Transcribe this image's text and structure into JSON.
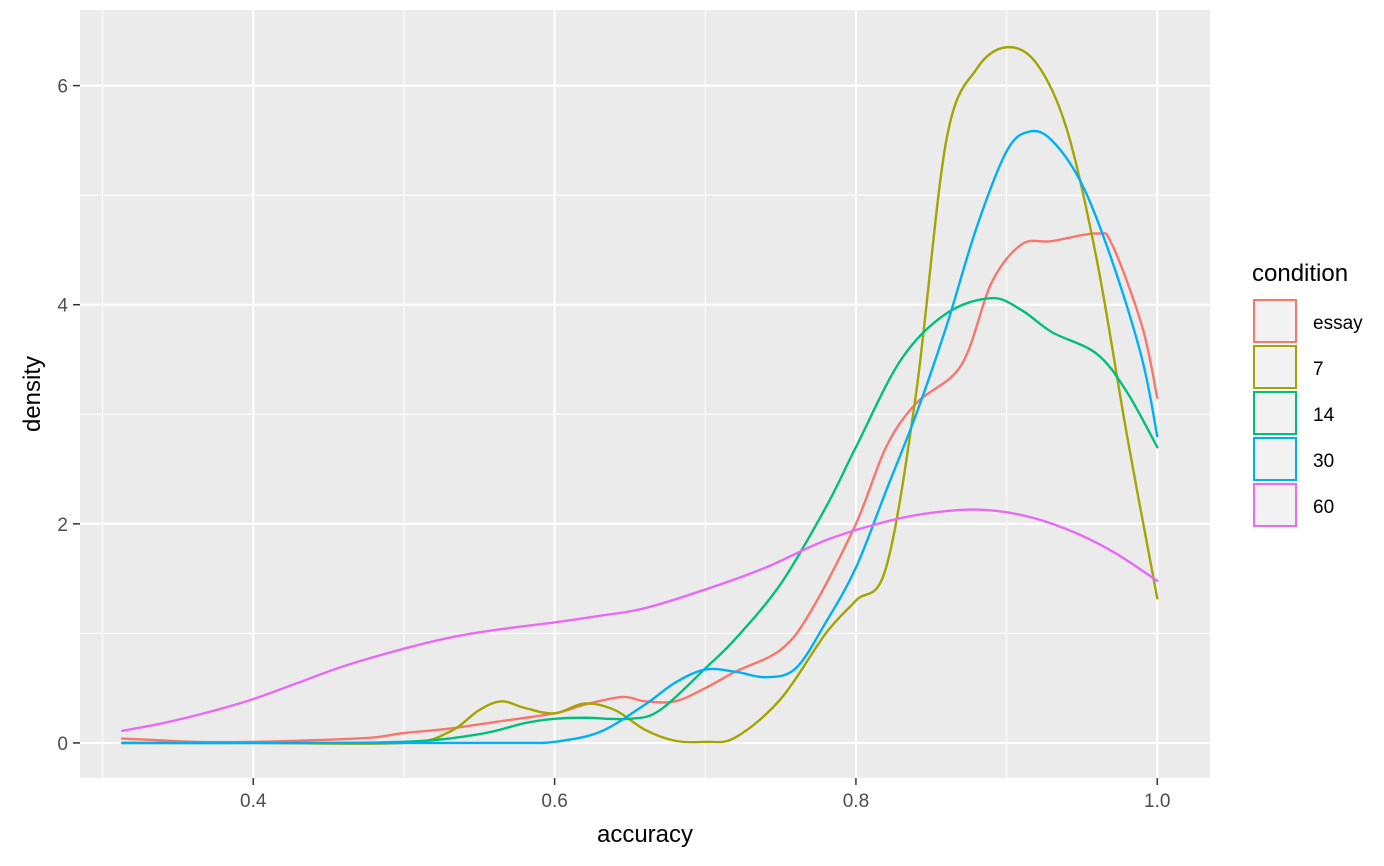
{
  "chart_data": {
    "type": "line",
    "title": "",
    "xlabel": "accuracy",
    "ylabel": "density",
    "xlim": [
      0.285,
      1.035
    ],
    "ylim": [
      -0.32,
      6.69
    ],
    "x_ticks": [
      0.4,
      0.6,
      0.8,
      1.0
    ],
    "x_tick_labels": [
      "0.4",
      "0.6",
      "0.8",
      "1.0"
    ],
    "y_ticks": [
      0,
      2,
      4,
      6
    ],
    "y_tick_labels": [
      "0",
      "2",
      "4",
      "6"
    ],
    "grid": true,
    "legend": {
      "title": "condition",
      "position": "right"
    },
    "series": [
      {
        "name": "essay",
        "color": "#F8766D",
        "points": [
          [
            0.313,
            0.04
          ],
          [
            0.33,
            0.03
          ],
          [
            0.36,
            0.01
          ],
          [
            0.4,
            0.01
          ],
          [
            0.45,
            0.03
          ],
          [
            0.48,
            0.05
          ],
          [
            0.5,
            0.09
          ],
          [
            0.53,
            0.13
          ],
          [
            0.56,
            0.19
          ],
          [
            0.6,
            0.27
          ],
          [
            0.62,
            0.35
          ],
          [
            0.645,
            0.42
          ],
          [
            0.66,
            0.38
          ],
          [
            0.68,
            0.38
          ],
          [
            0.7,
            0.5
          ],
          [
            0.72,
            0.65
          ],
          [
            0.75,
            0.85
          ],
          [
            0.77,
            1.2
          ],
          [
            0.8,
            2.0
          ],
          [
            0.82,
            2.7
          ],
          [
            0.84,
            3.1
          ],
          [
            0.87,
            3.45
          ],
          [
            0.89,
            4.2
          ],
          [
            0.91,
            4.55
          ],
          [
            0.93,
            4.58
          ],
          [
            0.96,
            4.65
          ],
          [
            0.97,
            4.55
          ],
          [
            0.99,
            3.8
          ],
          [
            1.0,
            3.15
          ]
        ]
      },
      {
        "name": "7",
        "color": "#A3A500",
        "points": [
          [
            0.313,
            0.0
          ],
          [
            0.4,
            0.0
          ],
          [
            0.5,
            0.0
          ],
          [
            0.53,
            0.1
          ],
          [
            0.55,
            0.3
          ],
          [
            0.565,
            0.38
          ],
          [
            0.58,
            0.32
          ],
          [
            0.6,
            0.27
          ],
          [
            0.62,
            0.36
          ],
          [
            0.64,
            0.3
          ],
          [
            0.66,
            0.12
          ],
          [
            0.68,
            0.02
          ],
          [
            0.7,
            0.01
          ],
          [
            0.72,
            0.05
          ],
          [
            0.75,
            0.4
          ],
          [
            0.78,
            1.0
          ],
          [
            0.8,
            1.3
          ],
          [
            0.82,
            1.6
          ],
          [
            0.84,
            3.2
          ],
          [
            0.86,
            5.5
          ],
          [
            0.88,
            6.15
          ],
          [
            0.9,
            6.35
          ],
          [
            0.92,
            6.2
          ],
          [
            0.94,
            5.6
          ],
          [
            0.96,
            4.4
          ],
          [
            0.98,
            2.8
          ],
          [
            1.0,
            1.32
          ]
        ]
      },
      {
        "name": "14",
        "color": "#00BF7D",
        "points": [
          [
            0.313,
            0.0
          ],
          [
            0.4,
            0.0
          ],
          [
            0.5,
            0.01
          ],
          [
            0.55,
            0.08
          ],
          [
            0.58,
            0.18
          ],
          [
            0.6,
            0.22
          ],
          [
            0.62,
            0.23
          ],
          [
            0.65,
            0.22
          ],
          [
            0.67,
            0.3
          ],
          [
            0.7,
            0.68
          ],
          [
            0.72,
            0.95
          ],
          [
            0.75,
            1.45
          ],
          [
            0.78,
            2.15
          ],
          [
            0.8,
            2.7
          ],
          [
            0.83,
            3.5
          ],
          [
            0.86,
            3.92
          ],
          [
            0.89,
            4.06
          ],
          [
            0.91,
            3.95
          ],
          [
            0.93,
            3.75
          ],
          [
            0.96,
            3.55
          ],
          [
            0.98,
            3.2
          ],
          [
            1.0,
            2.7
          ]
        ]
      },
      {
        "name": "30",
        "color": "#00B0F6",
        "points": [
          [
            0.313,
            0.0
          ],
          [
            0.5,
            0.0
          ],
          [
            0.58,
            0.0
          ],
          [
            0.6,
            0.01
          ],
          [
            0.63,
            0.1
          ],
          [
            0.66,
            0.35
          ],
          [
            0.68,
            0.55
          ],
          [
            0.7,
            0.67
          ],
          [
            0.72,
            0.65
          ],
          [
            0.74,
            0.6
          ],
          [
            0.76,
            0.68
          ],
          [
            0.78,
            1.1
          ],
          [
            0.8,
            1.6
          ],
          [
            0.82,
            2.3
          ],
          [
            0.84,
            3.0
          ],
          [
            0.86,
            3.8
          ],
          [
            0.88,
            4.7
          ],
          [
            0.9,
            5.4
          ],
          [
            0.915,
            5.58
          ],
          [
            0.93,
            5.5
          ],
          [
            0.95,
            5.1
          ],
          [
            0.97,
            4.4
          ],
          [
            0.99,
            3.5
          ],
          [
            1.0,
            2.8
          ]
        ]
      },
      {
        "name": "60",
        "color": "#E76BF3",
        "points": [
          [
            0.313,
            0.11
          ],
          [
            0.34,
            0.18
          ],
          [
            0.37,
            0.28
          ],
          [
            0.4,
            0.4
          ],
          [
            0.43,
            0.55
          ],
          [
            0.46,
            0.7
          ],
          [
            0.5,
            0.86
          ],
          [
            0.53,
            0.96
          ],
          [
            0.56,
            1.03
          ],
          [
            0.6,
            1.1
          ],
          [
            0.63,
            1.16
          ],
          [
            0.66,
            1.23
          ],
          [
            0.7,
            1.4
          ],
          [
            0.74,
            1.6
          ],
          [
            0.78,
            1.85
          ],
          [
            0.82,
            2.02
          ],
          [
            0.85,
            2.1
          ],
          [
            0.88,
            2.13
          ],
          [
            0.91,
            2.08
          ],
          [
            0.94,
            1.95
          ],
          [
            0.97,
            1.75
          ],
          [
            1.0,
            1.48
          ]
        ]
      }
    ]
  }
}
